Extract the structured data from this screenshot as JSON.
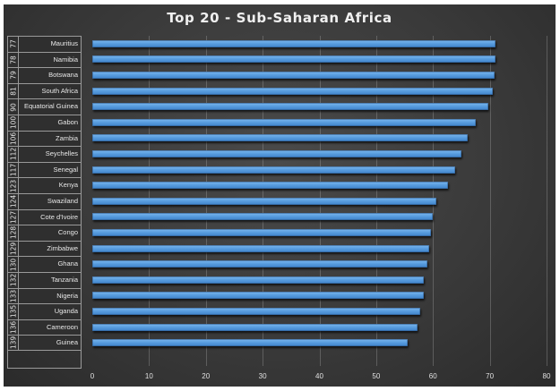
{
  "chart_data": {
    "type": "bar",
    "orientation": "horizontal",
    "title": "Top 20 - Sub-Saharan Africa",
    "xlabel": "",
    "ylabel": "",
    "xlim": [
      0,
      80
    ],
    "x_ticks": [
      0,
      10,
      20,
      30,
      40,
      50,
      60,
      70,
      80
    ],
    "grid": true,
    "legend": null,
    "bar_color": "#5a9ee0",
    "background": "#3a3a3a",
    "categories": [
      {
        "rank": "77",
        "country": "Mauritius"
      },
      {
        "rank": "78",
        "country": "Namibia"
      },
      {
        "rank": "79",
        "country": "Botswana"
      },
      {
        "rank": "81",
        "country": "South Africa"
      },
      {
        "rank": "90",
        "country": "Equatorial Guinea"
      },
      {
        "rank": "100",
        "country": "Gabon"
      },
      {
        "rank": "106",
        "country": "Zambia"
      },
      {
        "rank": "112",
        "country": "Seychelles"
      },
      {
        "rank": "117",
        "country": "Senegal"
      },
      {
        "rank": "123",
        "country": "Kenya"
      },
      {
        "rank": "124",
        "country": "Swaziland"
      },
      {
        "rank": "127",
        "country": "Cote d'Ivoire"
      },
      {
        "rank": "128",
        "country": "Congo"
      },
      {
        "rank": "129",
        "country": "Zimbabwe"
      },
      {
        "rank": "130",
        "country": "Ghana"
      },
      {
        "rank": "132",
        "country": "Tanzania"
      },
      {
        "rank": "133",
        "country": "Nigeria"
      },
      {
        "rank": "135",
        "country": "Uganda"
      },
      {
        "rank": "136",
        "country": "Cameroon"
      },
      {
        "rank": "139",
        "country": "Guinea"
      }
    ],
    "values": [
      71.0,
      71.0,
      70.8,
      70.5,
      69.7,
      67.5,
      66.1,
      65.0,
      63.9,
      62.6,
      60.6,
      59.9,
      59.6,
      59.3,
      59.0,
      58.4,
      58.4,
      57.7,
      57.3,
      55.5
    ]
  }
}
